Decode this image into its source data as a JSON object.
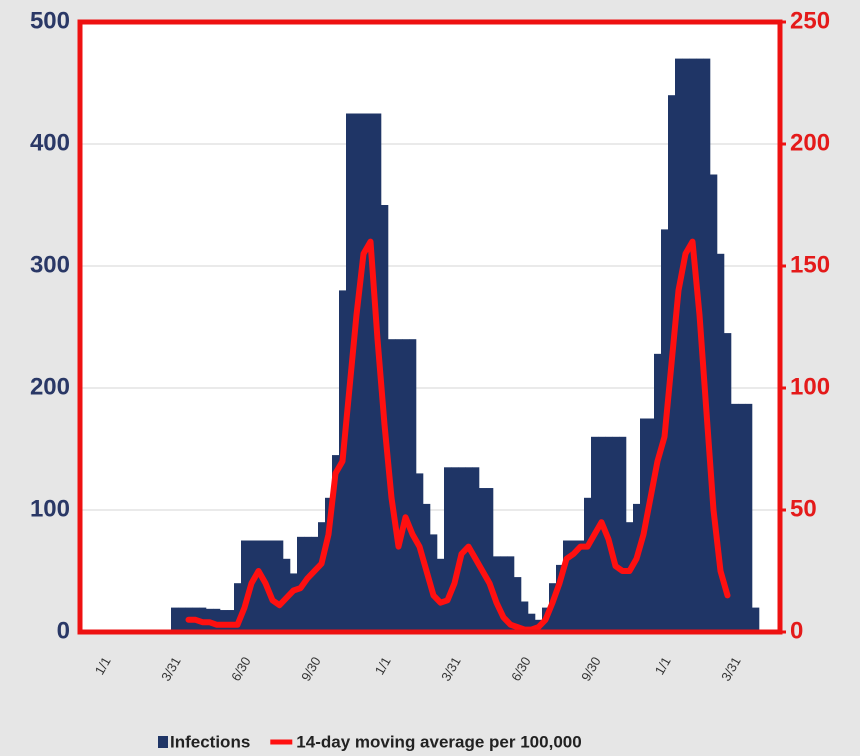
{
  "chart_data": {
    "type": "combo",
    "categories": [
      null,
      null,
      "1/1",
      null,
      null,
      null,
      null,
      null,
      null,
      null,
      null,
      null,
      "3/31",
      null,
      null,
      null,
      null,
      null,
      null,
      null,
      null,
      null,
      "6/30",
      null,
      null,
      null,
      null,
      null,
      null,
      null,
      null,
      null,
      "9/30",
      null,
      null,
      null,
      null,
      null,
      null,
      null,
      null,
      null,
      "1/1",
      null,
      null,
      null,
      null,
      null,
      null,
      null,
      null,
      null,
      "3/31",
      null,
      null,
      null,
      null,
      null,
      null,
      null,
      null,
      null,
      "6/30",
      null,
      null,
      null,
      null,
      null,
      null,
      null,
      null,
      null,
      "9/30",
      null,
      null,
      null,
      null,
      null,
      null,
      null,
      null,
      null,
      "1/1",
      null,
      null,
      null,
      null,
      null,
      null,
      null,
      null,
      null,
      "3/31",
      null,
      null,
      null,
      null,
      null,
      null,
      null
    ],
    "series": [
      {
        "name": "Infections",
        "type": "bar",
        "color": "#1f3566",
        "values": [
          0,
          0,
          0,
          0,
          0,
          0,
          0,
          0,
          0,
          0,
          0,
          0,
          0,
          20,
          20,
          20,
          20,
          20,
          19,
          19,
          18,
          18,
          40,
          75,
          75,
          75,
          75,
          75,
          75,
          60,
          48,
          78,
          78,
          78,
          90,
          110,
          145,
          280,
          425,
          425,
          425,
          425,
          425,
          350,
          240,
          240,
          240,
          240,
          130,
          105,
          80,
          60,
          135,
          135,
          135,
          135,
          135,
          118,
          118,
          62,
          62,
          62,
          45,
          25,
          15,
          10,
          20,
          40,
          55,
          75,
          75,
          75,
          110,
          160,
          160,
          160,
          160,
          160,
          90,
          105,
          175,
          175,
          228,
          330,
          440,
          470,
          470,
          470,
          470,
          470,
          375,
          310,
          245,
          187,
          187,
          187,
          20,
          0,
          0,
          0
        ]
      },
      {
        "name": "14-day moving average per 100,000",
        "type": "line",
        "axis": "y2",
        "color": "#ff1010",
        "values": [
          null,
          null,
          null,
          null,
          null,
          null,
          null,
          null,
          null,
          null,
          null,
          null,
          null,
          null,
          null,
          5,
          5,
          4,
          4,
          3,
          3,
          3,
          3,
          10,
          20,
          25,
          20,
          13,
          11,
          14,
          17,
          18,
          22,
          25,
          28,
          40,
          65,
          70,
          100,
          130,
          155,
          160,
          120,
          85,
          55,
          35,
          47,
          40,
          35,
          25,
          15,
          12,
          13,
          20,
          32,
          35,
          30,
          25,
          20,
          12,
          6,
          3,
          2,
          1,
          1,
          2,
          5,
          12,
          20,
          30,
          32,
          35,
          35,
          40,
          45,
          38,
          27,
          25,
          25,
          30,
          40,
          55,
          70,
          80,
          110,
          140,
          155,
          160,
          130,
          90,
          50,
          25,
          15,
          null,
          null,
          null,
          null,
          null,
          null,
          null
        ]
      }
    ],
    "ylim": [
      0,
      500
    ],
    "yticks": [
      0,
      100,
      200,
      300,
      400,
      500
    ],
    "y2lim": [
      0,
      250
    ],
    "y2ticks": [
      0,
      50,
      100,
      150,
      200,
      250
    ],
    "grid": true
  }
}
